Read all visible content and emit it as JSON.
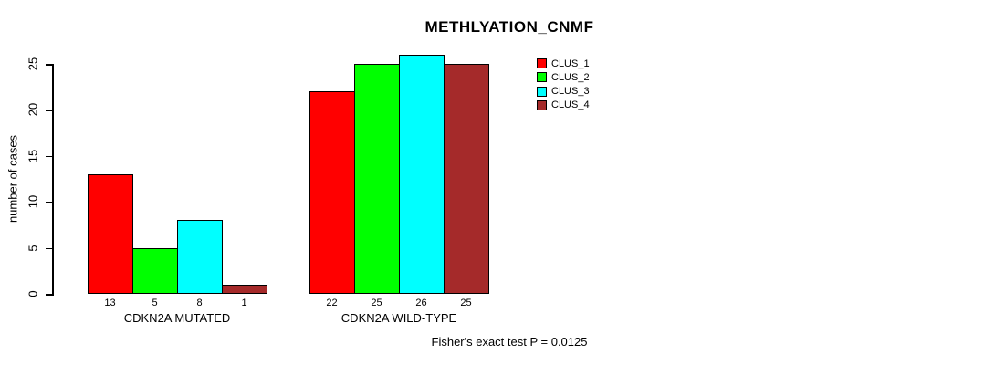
{
  "chart_data": {
    "type": "bar",
    "title": "METHLYATION_CNMF",
    "ylabel": "number of cases",
    "xlabel": "",
    "ylim": [
      0,
      25
    ],
    "yticks": [
      0,
      5,
      10,
      15,
      20,
      25
    ],
    "grid": false,
    "legend_position": "top-right",
    "categories": [
      "CDKN2A MUTATED",
      "CDKN2A WILD-TYPE"
    ],
    "series": [
      {
        "name": "CLUS_1",
        "color": "#FF0000",
        "values": [
          13,
          22
        ]
      },
      {
        "name": "CLUS_2",
        "color": "#00FF00",
        "values": [
          5,
          25
        ]
      },
      {
        "name": "CLUS_3",
        "color": "#00FFFF",
        "values": [
          8,
          26
        ]
      },
      {
        "name": "CLUS_4",
        "color": "#A52A2A",
        "values": [
          1,
          25
        ]
      }
    ],
    "bar_value_labels": true,
    "annotation": "Fisher's exact test P = 0.0125"
  }
}
